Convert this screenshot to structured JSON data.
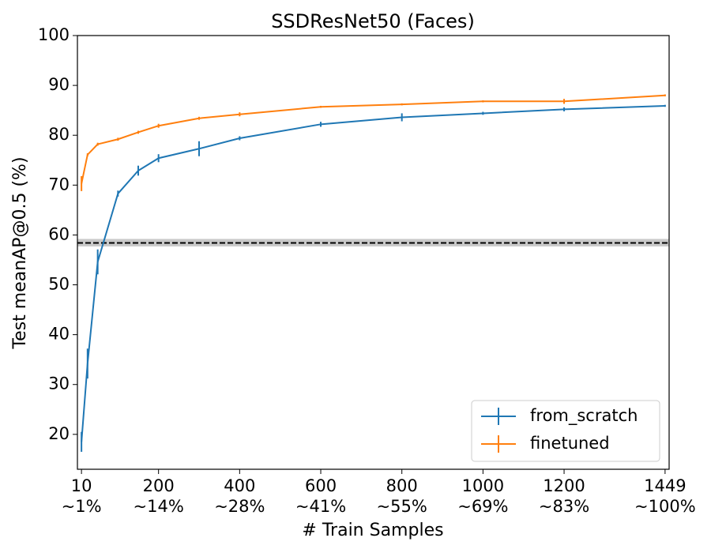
{
  "chart_data": {
    "type": "line",
    "title": "SSDResNet50 (Faces)",
    "x_label": "# Train Samples",
    "y_label": "Test meanAP@0.5 (%)",
    "xlim": [
      0,
      1459
    ],
    "ylim": [
      13,
      100
    ],
    "xticks": [
      10,
      200,
      400,
      600,
      800,
      1000,
      1200,
      1449
    ],
    "xtick_sublabels": [
      "~1%",
      "~14%",
      "~28%",
      "~41%",
      "~55%",
      "~69%",
      "~83%",
      "~100%"
    ],
    "yticks": [
      20,
      30,
      40,
      50,
      60,
      70,
      80,
      90,
      100
    ],
    "legend": "lower right",
    "reference": {
      "value": 58.4,
      "band_low": 57.7,
      "band_high": 59.2,
      "color": "#000000",
      "band_color": "#bbbbbb"
    },
    "series": [
      {
        "name": "from_scratch",
        "color": "#1f77b4",
        "x": [
          10,
          25,
          50,
          100,
          150,
          200,
          300,
          400,
          600,
          800,
          1000,
          1200,
          1449
        ],
        "values": [
          18.5,
          34.2,
          54.6,
          68.3,
          72.9,
          75.4,
          77.3,
          79.4,
          82.2,
          83.6,
          84.4,
          85.2,
          85.9
        ],
        "errors": [
          2,
          3,
          2.5,
          0.6,
          1,
          0.8,
          1.5,
          0.4,
          0.5,
          0.8,
          0.3,
          0.4,
          0.2
        ]
      },
      {
        "name": "finetuned",
        "color": "#ff7f0e",
        "x": [
          10,
          25,
          50,
          100,
          150,
          200,
          300,
          400,
          600,
          800,
          1000,
          1200,
          1449
        ],
        "values": [
          70.3,
          76.1,
          78.2,
          79.2,
          80.6,
          81.9,
          83.4,
          84.2,
          85.7,
          86.2,
          86.8,
          86.8,
          88.0
        ],
        "errors": [
          1.5,
          0.3,
          0.3,
          0.3,
          0.3,
          0.4,
          0.3,
          0.4,
          0.2,
          0.2,
          0.2,
          0.5,
          0.2
        ]
      }
    ]
  }
}
